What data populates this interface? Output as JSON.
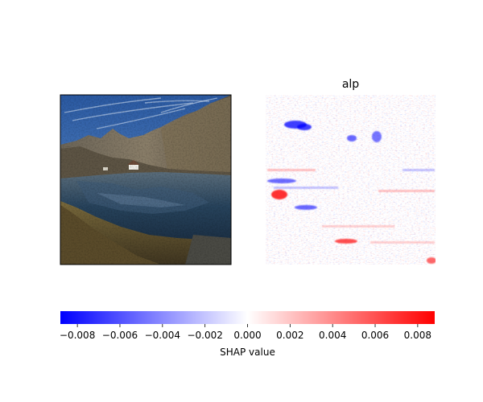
{
  "chart_data": {
    "type": "heatmap",
    "panels": [
      {
        "kind": "photo",
        "title": "",
        "subject": "alpine lake with mountain ridge, small chapel, blue sky with wispy clouds"
      },
      {
        "kind": "shap-heatmap",
        "title": "alp",
        "highlights": [
          {
            "sign": "negative",
            "strength": 0.9,
            "location": "upper-left, near top"
          },
          {
            "sign": "negative",
            "strength": 0.6,
            "location": "upper-middle"
          },
          {
            "sign": "negative",
            "strength": 0.5,
            "location": "upper-right"
          },
          {
            "sign": "positive",
            "strength": 1.0,
            "location": "mid-left"
          },
          {
            "sign": "negative",
            "strength": 0.6,
            "location": "mid-left band"
          },
          {
            "sign": "positive",
            "strength": 0.8,
            "location": "lower-middle"
          },
          {
            "sign": "positive",
            "strength": 0.6,
            "location": "bottom-right corner"
          }
        ]
      }
    ],
    "colorbar": {
      "label": "SHAP value",
      "range": [
        -0.0088,
        0.0088
      ],
      "ticks": [
        "−0.008",
        "−0.006",
        "−0.004",
        "−0.002",
        "0.000",
        "0.002",
        "0.004",
        "0.006",
        "0.008"
      ],
      "tick_values": [
        -0.008,
        -0.006,
        -0.004,
        -0.002,
        0.0,
        0.002,
        0.004,
        0.006,
        0.008
      ],
      "colormap": [
        "#0000ff",
        "#ffffff",
        "#ff0000"
      ]
    }
  }
}
